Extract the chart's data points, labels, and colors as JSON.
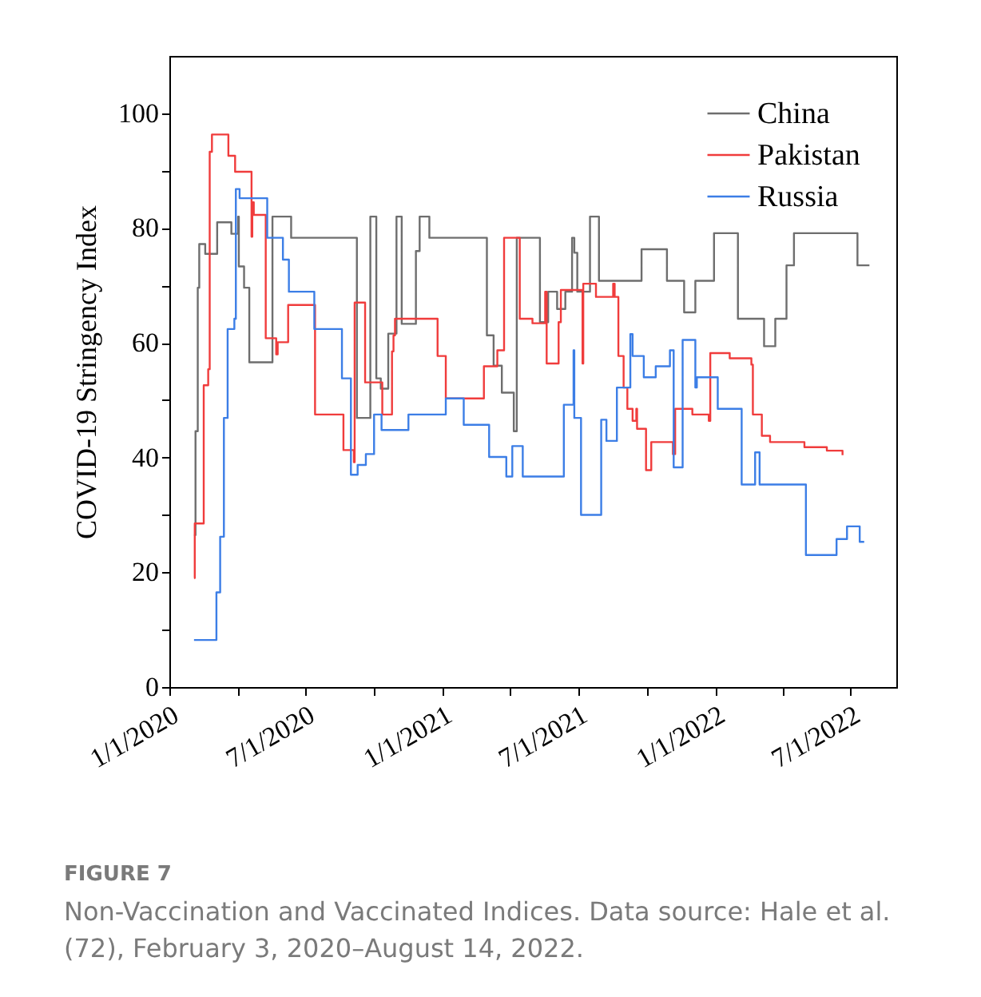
{
  "chart_data": {
    "type": "step",
    "ylabel": "COVID-19 Stringency Index",
    "ylim": [
      0,
      110
    ],
    "yticks": [
      0,
      {
        "value": 10,
        "label": null
      },
      20,
      {
        "value": 30,
        "label": null
      },
      40,
      {
        "value": 50,
        "label": null
      },
      60,
      {
        "value": 70,
        "label": null
      },
      80,
      {
        "value": 90,
        "label": null
      },
      100
    ],
    "xlim": [
      "2020-01-01",
      "2022-08-31"
    ],
    "xticks": [
      {
        "value": "2020-01-01",
        "label": "1/1/2020"
      },
      {
        "value": "2020-04-01",
        "label": null
      },
      {
        "value": "2020-07-01",
        "label": "7/1/2020"
      },
      {
        "value": "2020-10-01",
        "label": null
      },
      {
        "value": "2021-01-01",
        "label": "1/1/2021"
      },
      {
        "value": "2021-04-01",
        "label": null
      },
      {
        "value": "2021-07-01",
        "label": "7/1/2021"
      },
      {
        "value": "2021-10-01",
        "label": null
      },
      {
        "value": "2022-01-01",
        "label": "1/1/2022"
      },
      {
        "value": "2022-04-01",
        "label": null
      },
      {
        "value": "2022-07-01",
        "label": "7/1/2022"
      }
    ],
    "legend": "top right",
    "grid": false,
    "annotations": [
      "FIGURE 7",
      "Non-Vaccination and Vaccinated Indices. Data source: Hale et al. (72), February 3, 2020–August 14, 2022."
    ],
    "series": [
      {
        "name": "China",
        "color": "#6e6e6e",
        "x": [
          "2020-02-03",
          "2020-02-05",
          "2020-02-08",
          "2020-02-10",
          "2020-02-18",
          "2020-03-05",
          "2020-03-24",
          "2020-04-02",
          "2020-04-03",
          "2020-04-10",
          "2020-04-17",
          "2020-05-18",
          "2020-06-12",
          "2020-09-08",
          "2020-09-26",
          "2020-10-04",
          "2020-10-10",
          "2020-10-20",
          "2020-10-31",
          "2020-11-07",
          "2020-11-26",
          "2020-12-01",
          "2020-12-14",
          "2021-03-01",
          "2021-03-10",
          "2021-03-21",
          "2021-04-06",
          "2021-04-10",
          "2021-05-11",
          "2021-05-22",
          "2021-06-03",
          "2021-06-14",
          "2021-06-23",
          "2021-06-26",
          "2021-06-30",
          "2021-07-17",
          "2021-07-29",
          "2021-09-24",
          "2021-10-28",
          "2021-11-20",
          "2021-12-05",
          "2021-12-30",
          "2022-01-31",
          "2022-03-07",
          "2022-03-22",
          "2022-04-06",
          "2022-04-16",
          "2022-07-10",
          "2022-07-26"
        ],
        "values": [
          26.5,
          44.6,
          69.6,
          77.2,
          75.5,
          81,
          79,
          82,
          73.3,
          69.6,
          56.6,
          82,
          78.3,
          46.9,
          82,
          53.8,
          52,
          61.6,
          82,
          63.3,
          76,
          82,
          78.3,
          61.3,
          56,
          51.3,
          44.6,
          78.3,
          63.6,
          68.9,
          65.9,
          68.9,
          78.3,
          75.7,
          68.9,
          82,
          70.8,
          76.3,
          70.8,
          65.3,
          70.8,
          79.1,
          64.2,
          59.4,
          64.2,
          73.5,
          79.1,
          73.5,
          73.5
        ]
      },
      {
        "name": "Pakistan",
        "color": "#f03c3c",
        "x": [
          "2020-02-03",
          "2020-02-04",
          "2020-02-16",
          "2020-02-22",
          "2020-02-24",
          "2020-02-27",
          "2020-03-20",
          "2020-03-29",
          "2020-04-20",
          "2020-04-21",
          "2020-04-23",
          "2020-05-09",
          "2020-05-23",
          "2020-05-25",
          "2020-06-08",
          "2020-07-14",
          "2020-08-21",
          "2020-09-04",
          "2020-09-05",
          "2020-09-19",
          "2020-10-12",
          "2020-10-25",
          "2020-10-27",
          "2020-10-29",
          "2020-12-25",
          "2021-01-05",
          "2021-02-25",
          "2021-03-15",
          "2021-03-24",
          "2021-04-14",
          "2021-05-01",
          "2021-05-18",
          "2021-05-20",
          "2021-06-05",
          "2021-06-08",
          "2021-07-07",
          "2021-07-08",
          "2021-07-25",
          "2021-08-17",
          "2021-08-19",
          "2021-08-24",
          "2021-08-31",
          "2021-09-05",
          "2021-09-12",
          "2021-09-17",
          "2021-09-18",
          "2021-09-30",
          "2021-10-07",
          "2021-11-05",
          "2021-11-08",
          "2021-12-01",
          "2021-12-23",
          "2021-12-25",
          "2022-01-20",
          "2022-02-18",
          "2022-02-20",
          "2022-03-04",
          "2022-03-15",
          "2022-04-30",
          "2022-05-30",
          "2022-06-20"
        ],
        "values": [
          19,
          28.5,
          52.6,
          55.4,
          93.3,
          96.3,
          92.6,
          89.8,
          78.5,
          84.5,
          82.3,
          60.8,
          58,
          60.1,
          66.6,
          47.5,
          41.3,
          39.2,
          67,
          53.1,
          47.5,
          58.5,
          61.3,
          64.2,
          57.7,
          50.3,
          55.9,
          58.7,
          78.3,
          64.2,
          63.4,
          68.9,
          56.4,
          63.6,
          69.2,
          56.4,
          70.3,
          68,
          70.3,
          68,
          57.7,
          52.2,
          48.5,
          46.4,
          48.5,
          45,
          37.8,
          42.7,
          40.6,
          48.5,
          47.5,
          46.4,
          58.2,
          57.3,
          56.2,
          47.5,
          43.8,
          42.7,
          41.8,
          41.2,
          40.4
        ]
      },
      {
        "name": "Russia",
        "color": "#3c7ee6",
        "x": [
          "2020-02-03",
          "2020-03-04",
          "2020-03-09",
          "2020-03-14",
          "2020-03-19",
          "2020-03-28",
          "2020-03-30",
          "2020-04-04",
          "2020-05-11",
          "2020-06-01",
          "2020-06-09",
          "2020-07-13",
          "2020-08-19",
          "2020-08-31",
          "2020-09-09",
          "2020-09-20",
          "2020-10-01",
          "2020-10-11",
          "2020-11-16",
          "2021-01-05",
          "2021-01-29",
          "2021-03-04",
          "2021-03-27",
          "2021-04-04",
          "2021-04-18",
          "2021-06-12",
          "2021-06-25",
          "2021-06-26",
          "2021-07-05",
          "2021-08-01",
          "2021-08-08",
          "2021-08-22",
          "2021-09-09",
          "2021-09-12",
          "2021-09-27",
          "2021-10-13",
          "2021-11-01",
          "2021-11-06",
          "2021-11-18",
          "2021-12-05",
          "2021-12-07",
          "2022-01-04",
          "2022-02-05",
          "2022-02-23",
          "2022-03-01",
          "2022-05-02",
          "2022-06-12",
          "2022-06-26",
          "2022-07-13",
          "2022-07-19"
        ],
        "values": [
          8.2,
          16.5,
          26.2,
          46.9,
          62.4,
          64.2,
          86.8,
          85.2,
          78.3,
          74.5,
          68.9,
          62.4,
          53.8,
          37,
          38.7,
          40.6,
          47.5,
          44.8,
          47.5,
          50.3,
          45.7,
          40.1,
          36.7,
          42,
          36.7,
          49.2,
          58.7,
          46.9,
          30,
          46.6,
          42.9,
          52.2,
          61.5,
          57.7,
          54,
          55.9,
          58.7,
          38.3,
          60.5,
          52.2,
          54,
          48.5,
          35.3,
          40.9,
          35.3,
          23,
          25.8,
          28,
          25.3,
          25.3
        ]
      }
    ]
  }
}
